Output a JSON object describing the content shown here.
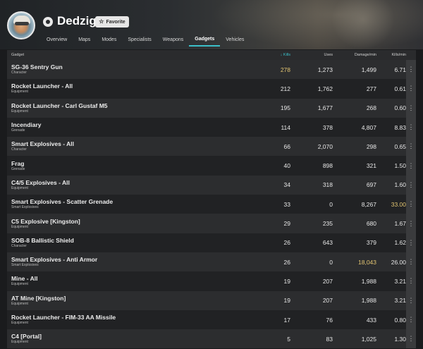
{
  "profile": {
    "name": "Dedzigs",
    "favorite_label": "Favorite"
  },
  "tabs": [
    {
      "label": "Overview",
      "active": false
    },
    {
      "label": "Maps",
      "active": false
    },
    {
      "label": "Modes",
      "active": false
    },
    {
      "label": "Specialists",
      "active": false
    },
    {
      "label": "Weapons",
      "active": false
    },
    {
      "label": "Gadgets",
      "active": true
    },
    {
      "label": "Vehicles",
      "active": false
    }
  ],
  "colors": {
    "accent": "#3bc0c9",
    "highlight": "#e2c471"
  },
  "table": {
    "headers": {
      "gadget": "Gadget",
      "kills": "Kills",
      "sort_indicator": "↓",
      "uses": "Uses",
      "damage": "Damage/min",
      "kpm": "Kills/min"
    },
    "rows": [
      {
        "name": "SG-36 Sentry Gun",
        "category": "Character",
        "kills": "278",
        "uses": "1,273",
        "damage": "1,499",
        "kpm": "6.71",
        "highlight": "kills"
      },
      {
        "name": "Rocket Launcher - All",
        "category": "Equipment",
        "kills": "212",
        "uses": "1,762",
        "damage": "277",
        "kpm": "0.61",
        "highlight": ""
      },
      {
        "name": "Rocket Launcher - Carl Gustaf M5",
        "category": "Equipment",
        "kills": "195",
        "uses": "1,677",
        "damage": "268",
        "kpm": "0.60",
        "highlight": ""
      },
      {
        "name": "Incendiary",
        "category": "Grenade",
        "kills": "114",
        "uses": "378",
        "damage": "4,807",
        "kpm": "8.83",
        "highlight": ""
      },
      {
        "name": "Smart Explosives - All",
        "category": "Character",
        "kills": "66",
        "uses": "2,070",
        "damage": "298",
        "kpm": "0.65",
        "highlight": ""
      },
      {
        "name": "Frag",
        "category": "Grenade",
        "kills": "40",
        "uses": "898",
        "damage": "321",
        "kpm": "1.50",
        "highlight": ""
      },
      {
        "name": "C4/5 Explosives - All",
        "category": "Equipment",
        "kills": "34",
        "uses": "318",
        "damage": "697",
        "kpm": "1.60",
        "highlight": ""
      },
      {
        "name": "Smart Explosives - Scatter Grenade",
        "category": "Smart Explosives",
        "kills": "33",
        "uses": "0",
        "damage": "8,267",
        "kpm": "33.00",
        "highlight": "kpm"
      },
      {
        "name": "C5 Explosive [Kingston]",
        "category": "Equipment",
        "kills": "29",
        "uses": "235",
        "damage": "680",
        "kpm": "1.67",
        "highlight": ""
      },
      {
        "name": "SOB-8 Ballistic Shield",
        "category": "Character",
        "kills": "26",
        "uses": "643",
        "damage": "379",
        "kpm": "1.62",
        "highlight": ""
      },
      {
        "name": "Smart Explosives - Anti Armor",
        "category": "Smart Explosives",
        "kills": "26",
        "uses": "0",
        "damage": "18,043",
        "kpm": "26.00",
        "highlight": "damage"
      },
      {
        "name": "Mine - All",
        "category": "Equipment",
        "kills": "19",
        "uses": "207",
        "damage": "1,988",
        "kpm": "3.21",
        "highlight": ""
      },
      {
        "name": "AT Mine [Kingston]",
        "category": "Equipment",
        "kills": "19",
        "uses": "207",
        "damage": "1,988",
        "kpm": "3.21",
        "highlight": ""
      },
      {
        "name": "Rocket Launcher - FIM-33 AA Missile",
        "category": "Equipment",
        "kills": "17",
        "uses": "76",
        "damage": "433",
        "kpm": "0.80",
        "highlight": ""
      },
      {
        "name": "C4 [Portal]",
        "category": "Equipment",
        "kills": "5",
        "uses": "83",
        "damage": "1,025",
        "kpm": "1.30",
        "highlight": ""
      }
    ],
    "menu_glyph": "⋮"
  }
}
